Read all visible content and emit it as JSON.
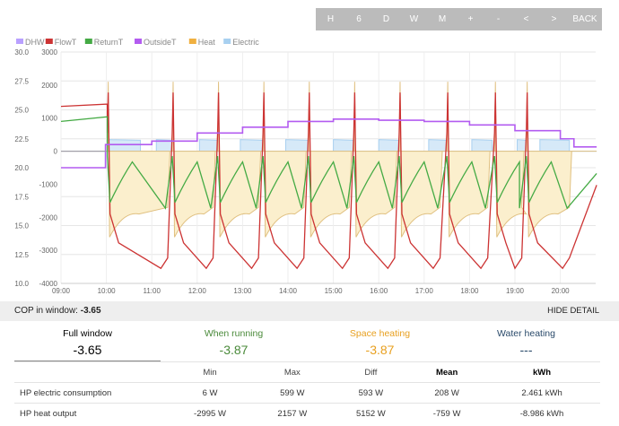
{
  "toolbar": {
    "buttons": [
      "H",
      "6",
      "D",
      "W",
      "M",
      "+",
      "-",
      "<",
      ">",
      "BACK"
    ]
  },
  "chart_data": {
    "type": "line",
    "x": [
      "09:00",
      "10:00",
      "11:00",
      "12:00",
      "13:00",
      "14:00",
      "15:00",
      "16:00",
      "17:00",
      "18:00",
      "19:00",
      "20:00"
    ],
    "y_left_ticks": [
      "30.0",
      "27.5",
      "25.0",
      "22.5",
      "20.0",
      "17.5",
      "15.0",
      "12.5",
      "10.0"
    ],
    "y_right_ticks": [
      "3000",
      "2000",
      "1000",
      "0",
      "-1000",
      "-2000",
      "-3000",
      "-4000"
    ],
    "ylim_left": [
      10,
      30
    ],
    "ylim_right": [
      -4000,
      3000
    ],
    "legend": [
      {
        "name": "DHW",
        "color": "#b9a0ff"
      },
      {
        "name": "FlowT",
        "color": "#cc3333"
      },
      {
        "name": "ReturnT",
        "color": "#44aa44"
      },
      {
        "name": "OutsideT",
        "color": "#b35cf0"
      },
      {
        "name": "Heat",
        "color": "#f0b040"
      },
      {
        "name": "Electric",
        "color": "#a8d0f0"
      }
    ],
    "legend_position": "top-left",
    "grid": true
  },
  "cop": {
    "label": "COP in window:",
    "value": "-3.65",
    "hide": "HIDE DETAIL"
  },
  "stats": {
    "full": {
      "title": "Full window",
      "value": "-3.65",
      "color": "#222222"
    },
    "running": {
      "title": "When running",
      "value": "-3.87",
      "color": "#4a8a3a"
    },
    "space": {
      "title": "Space heating",
      "value": "-3.87",
      "color": "#e8a020"
    },
    "water": {
      "title": "Water heating",
      "value": "---",
      "color": "#2a4a6a"
    }
  },
  "table": {
    "headers": [
      "",
      "Min",
      "Max",
      "Diff",
      "Mean",
      "kWh"
    ],
    "rows": [
      [
        "HP electric consumption",
        "6 W",
        "599 W",
        "593 W",
        "208 W",
        "2.461 kWh"
      ],
      [
        "HP heat output",
        "-2995 W",
        "2157 W",
        "5152 W",
        "-759 W",
        "-8.986 kWh"
      ]
    ]
  }
}
